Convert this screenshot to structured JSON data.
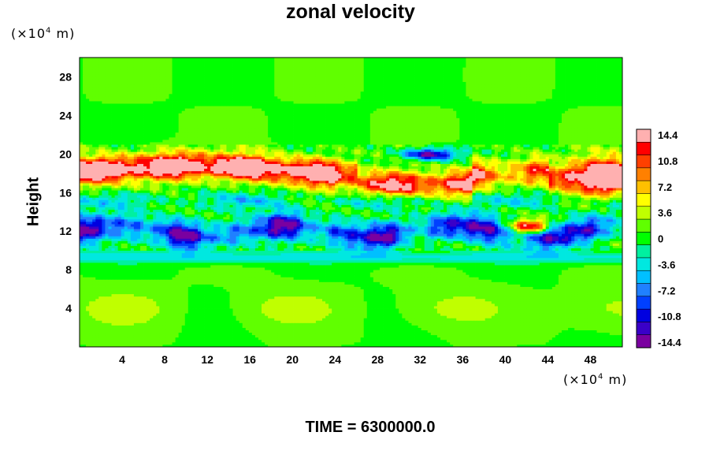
{
  "chart_data": {
    "type": "heatmap",
    "title": "zonal velocity",
    "ylabel": "Height",
    "xlabel": "",
    "x_unit_label": "(×10",
    "x_unit_exp": "4",
    "x_unit_suffix": " m)",
    "y_unit_label": "(×10",
    "y_unit_exp": "4",
    "y_unit_suffix": " m)",
    "xlim": [
      0,
      51
    ],
    "ylim": [
      0,
      30
    ],
    "x_ticks": [
      4,
      8,
      12,
      16,
      20,
      24,
      28,
      32,
      36,
      40,
      44,
      48
    ],
    "y_ticks": [
      4,
      8,
      12,
      16,
      20,
      24,
      28
    ],
    "colorbar": {
      "ticks": [
        "14.4",
        "10.8",
        "7.2",
        "3.6",
        "0",
        "-3.6",
        "-7.2",
        "-10.8",
        "-14.4"
      ],
      "range": [
        -14.4,
        14.4
      ],
      "levels": 17
    },
    "field_description": "zonal velocity field; mostly near 0 (green); strong positive jet (red/pink, >14) at height 17–20; negative band (blue, -7 to -14) at height 10–15",
    "time_label": "TIME = 6300000.0"
  }
}
